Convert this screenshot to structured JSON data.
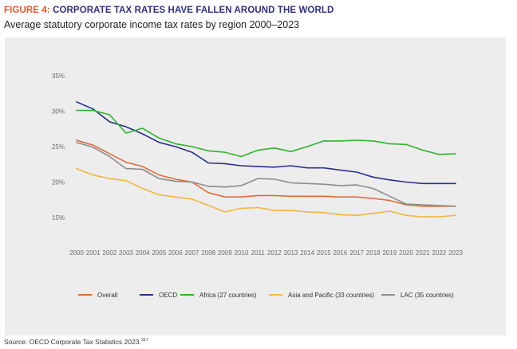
{
  "figure": {
    "number": "FIGURE 4:",
    "title": "CORPORATE TAX RATES HAVE FALLEN AROUND THE WORLD",
    "subtitle": "Average statutory corporate income tax rates by region 2000–2023",
    "source": "Source: OECD Corporate Tax Statistics 2023.",
    "source_note": "317"
  },
  "chart_data": {
    "type": "line",
    "title": "CORPORATE TAX RATES HAVE FALLEN AROUND THE WORLD",
    "subtitle": "Average statutory corporate income tax rates by region 2000–2023",
    "xlabel": "",
    "ylabel": "",
    "ylim": [
      15,
      35
    ],
    "yticks": [
      15,
      20,
      25,
      30,
      35
    ],
    "ytick_labels": [
      "15%",
      "20%",
      "25%",
      "30%",
      "35%"
    ],
    "grid": false,
    "legend_position": "bottom",
    "categories": [
      "2000",
      "2001",
      "2002",
      "2003",
      "2004",
      "2005",
      "2006",
      "2007",
      "2008",
      "2009",
      "2010",
      "2011",
      "2012",
      "2013",
      "2014",
      "2015",
      "2016",
      "2017",
      "2018",
      "2019",
      "2020",
      "2021",
      "2022",
      "2023"
    ],
    "series": [
      {
        "name": "Overall",
        "color": "#e06b3a",
        "values": [
          25.9,
          25.2,
          24.0,
          22.8,
          22.2,
          21.0,
          20.4,
          20.0,
          18.5,
          17.9,
          17.9,
          18.1,
          18.1,
          18.0,
          18.0,
          18.0,
          17.9,
          17.9,
          17.7,
          17.4,
          16.8,
          16.6,
          16.6,
          16.6
        ]
      },
      {
        "name": "OECD",
        "color": "#2b2f8c",
        "values": [
          31.3,
          30.3,
          28.5,
          27.8,
          26.8,
          25.6,
          25.0,
          24.2,
          22.7,
          22.6,
          22.3,
          22.2,
          22.1,
          22.3,
          22.0,
          22.0,
          21.7,
          21.4,
          20.7,
          20.3,
          20.0,
          19.8,
          19.8,
          19.8
        ]
      },
      {
        "name": "Africa (27 countries)",
        "color": "#2cb52c",
        "values": [
          30.1,
          30.1,
          29.5,
          26.9,
          27.6,
          26.2,
          25.4,
          25.0,
          24.4,
          24.2,
          23.6,
          24.5,
          24.8,
          24.3,
          25.0,
          25.8,
          25.8,
          25.9,
          25.8,
          25.4,
          25.3,
          24.5,
          23.9,
          24.0
        ]
      },
      {
        "name": "Asia and Pacific (33 countries)",
        "color": "#f5b63a",
        "values": [
          21.9,
          21.0,
          20.5,
          20.2,
          19.1,
          18.2,
          17.9,
          17.6,
          16.7,
          15.8,
          16.3,
          16.4,
          16.0,
          16.0,
          15.8,
          15.7,
          15.4,
          15.3,
          15.6,
          15.9,
          15.3,
          15.1,
          15.1,
          15.3
        ]
      },
      {
        "name": "LAC (35 countries)",
        "color": "#8c8c8c",
        "values": [
          25.6,
          24.9,
          23.6,
          21.9,
          21.8,
          20.5,
          20.1,
          20.0,
          19.4,
          19.3,
          19.5,
          20.5,
          20.4,
          19.9,
          19.8,
          19.7,
          19.5,
          19.6,
          19.1,
          18.0,
          16.9,
          16.8,
          16.7,
          16.6
        ]
      }
    ]
  }
}
